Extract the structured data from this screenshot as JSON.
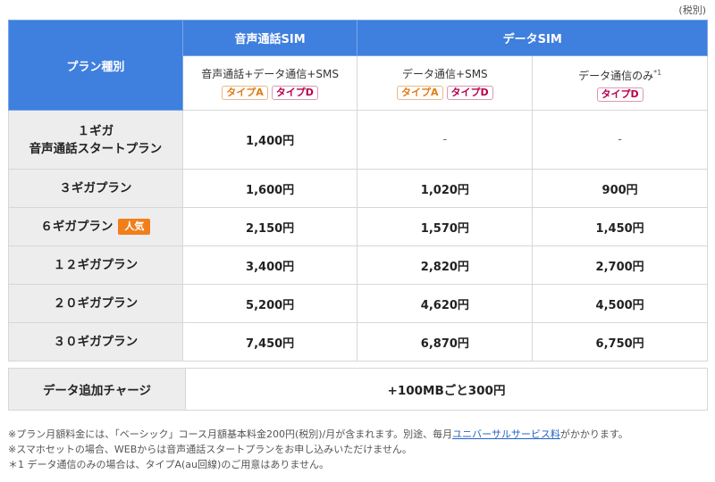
{
  "tax_note": "(税別)",
  "header": {
    "plan_type": "プラン種別",
    "voice_sim": "音声通話SIM",
    "data_sim": "データSIM",
    "col1": "音声通話+データ通信+SMS",
    "col2": "データ通信+SMS",
    "col3": "データ通信のみ",
    "col3_note": "*1",
    "type_a": "タイプA",
    "type_d": "タイプD"
  },
  "rows": [
    {
      "plan_line1": "１ギガ",
      "plan_line2": "音声通話スタートプラン",
      "voice": "1,400円",
      "data_sms": "-",
      "data_only": "-"
    },
    {
      "plan": "３ギガプラン",
      "voice": "1,600円",
      "data_sms": "1,020円",
      "data_only": "900円"
    },
    {
      "plan": "６ギガプラン",
      "badge": "人気",
      "voice": "2,150円",
      "data_sms": "1,570円",
      "data_only": "1,450円"
    },
    {
      "plan": "１２ギガプラン",
      "voice": "3,400円",
      "data_sms": "2,820円",
      "data_only": "2,700円"
    },
    {
      "plan": "２０ギガプラン",
      "voice": "5,200円",
      "data_sms": "4,620円",
      "data_only": "4,500円"
    },
    {
      "plan": "３０ギガプラン",
      "voice": "7,450円",
      "data_sms": "6,870円",
      "data_only": "6,750円"
    }
  ],
  "charge": {
    "label": "データ追加チャージ",
    "value": "+100MBごと300円"
  },
  "notes": {
    "n1_pre": "※プラン月額料金には、「ベーシック」コース月額基本料金200円(税別)/月が含まれます。別途、毎月",
    "n1_link": "ユニバーサルサービス料",
    "n1_post": "がかかります。",
    "n2": "※スマホセットの場合、WEBからは音声通話スタートプランをお申し込みいただけません。",
    "n3": "＊1 データ通信のみの場合は、タイプA(au回線)のご用意はありません。"
  },
  "colors": {
    "header_blue": "#3f7fde",
    "row_gray": "#ededed",
    "badge_orange": "#f07f1b",
    "type_a": "#e07b14",
    "type_d": "#b5004b"
  }
}
